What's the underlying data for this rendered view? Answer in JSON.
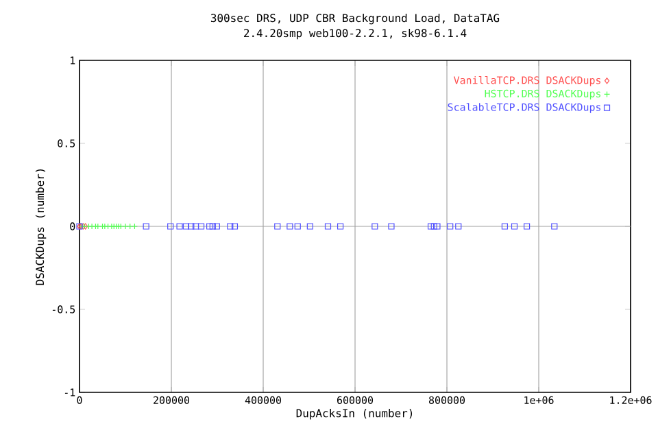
{
  "chart_data": {
    "type": "scatter",
    "title": "300sec DRS, UDP CBR Background Load, DataTAG",
    "subtitle": "2.4.20smp web100-2.2.1, sk98-6.1.4",
    "xlabel": "DupAcksIn (number)",
    "ylabel": "DSACKDups (number)",
    "xlim": [
      0,
      1200000
    ],
    "ylim": [
      -1,
      1
    ],
    "xticks": [
      0,
      200000,
      400000,
      600000,
      800000,
      {
        "value": 1000000,
        "label": "1e+06"
      },
      {
        "value": 1200000,
        "label": "1.2e+06"
      }
    ],
    "yticks": [
      -1,
      -0.5,
      0,
      0.5,
      1
    ],
    "grid": "x",
    "legend": "top right",
    "ref_lines": [
      {
        "axis": "y",
        "value": 0,
        "color": "#a0a0a0"
      }
    ],
    "series": [
      {
        "name": "VanillaTCP.DRS DSACKDups",
        "color": "#ff5050",
        "marker": "diamond",
        "x": [
          0,
          3000,
          8000,
          13000
        ],
        "values": [
          0,
          0,
          0,
          0
        ]
      },
      {
        "name": "HSTCP.DRS DSACKDups",
        "color": "#50ff50",
        "marker": "cross",
        "x": [
          5000,
          10000,
          20000,
          27000,
          35000,
          40000,
          50000,
          55000,
          62000,
          70000,
          75000,
          80000,
          85000,
          90000,
          100000,
          110000,
          120000
        ],
        "values": [
          0,
          0,
          0,
          0,
          0,
          0,
          0,
          0,
          0,
          0,
          0,
          0,
          0,
          0,
          0,
          0,
          0
        ]
      },
      {
        "name": "ScalableTCP.DRS DSACKDups",
        "color": "#5050ff",
        "marker": "square",
        "x": [
          0,
          145000,
          198000,
          218000,
          232000,
          243000,
          253000,
          265000,
          283000,
          290000,
          299000,
          328000,
          338000,
          431000,
          458000,
          475000,
          502000,
          541000,
          568000,
          643000,
          679000,
          765000,
          772000,
          779000,
          807000,
          825000,
          926000,
          947000,
          974000,
          1034000
        ],
        "values": [
          0,
          0,
          0,
          0,
          0,
          0,
          0,
          0,
          0,
          0,
          0,
          0,
          0,
          0,
          0,
          0,
          0,
          0,
          0,
          0,
          0,
          0,
          0,
          0,
          0,
          0,
          0,
          0,
          0,
          0
        ]
      }
    ]
  }
}
